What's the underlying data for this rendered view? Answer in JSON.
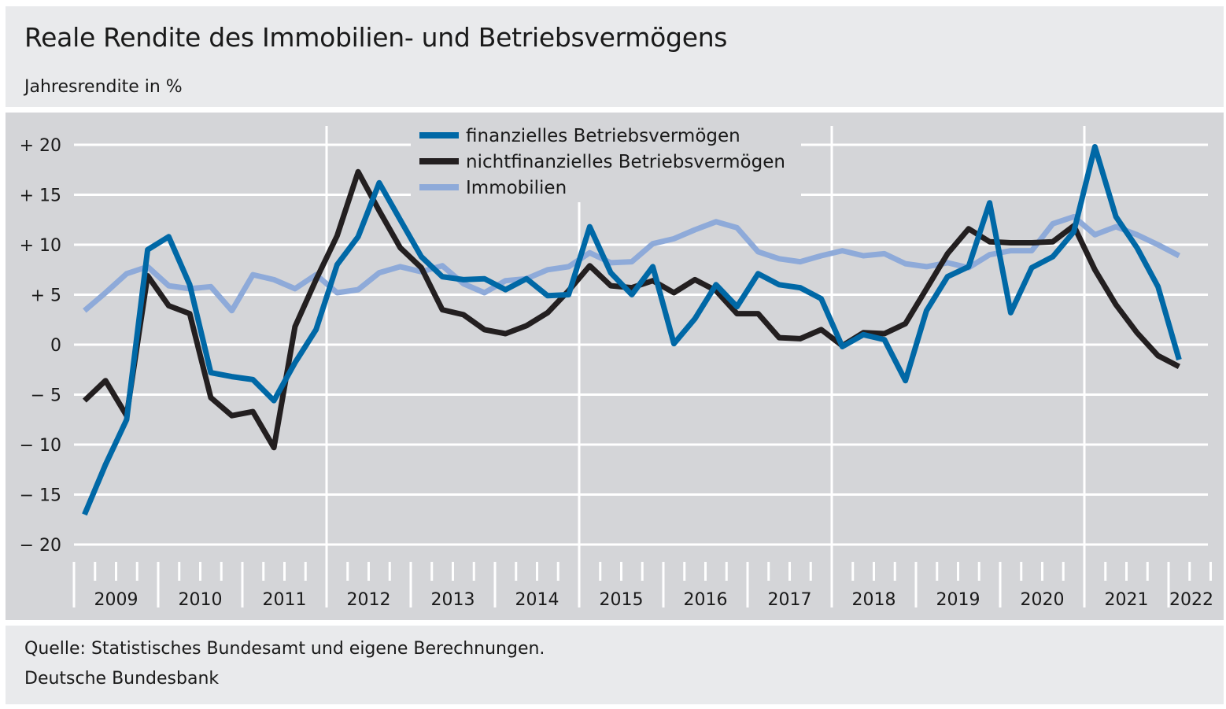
{
  "header": {
    "title": "Reale Rendite des Immobilien- und Betriebsvermögens",
    "subtitle": "Jahresrendite in %"
  },
  "footer": {
    "source": "Quelle: Statistisches Bundesamt und eigene Berechnungen.",
    "publisher": "Deutsche Bundesbank"
  },
  "colors": {
    "header_bg": "#e9eaec",
    "plot_bg": "#d4d5d8",
    "finanziell": "#0068a6",
    "nichtfinanziell": "#231f20",
    "immobilien": "#8eaad9"
  },
  "chart_data": {
    "type": "line",
    "title": "Reale Rendite des Immobilien- und Betriebsvermögens",
    "subtitle": "Jahresrendite in %",
    "xlabel": "",
    "ylabel": "",
    "ylim": [
      -20,
      20
    ],
    "y_ticks": [
      20,
      15,
      10,
      5,
      0,
      -5,
      -10,
      -15,
      -20
    ],
    "y_tick_labels": [
      "+ 20",
      "+ 15",
      "+ 10",
      "+   5",
      "0",
      "−   5",
      "− 10",
      "− 15",
      "− 20"
    ],
    "x_unit": "quarter",
    "x_start": "2009 Q1",
    "year_labels": [
      "2009",
      "2010",
      "2011",
      "2012",
      "2013",
      "2014",
      "2015",
      "2016",
      "2017",
      "2018",
      "2019",
      "2020",
      "2021",
      "2022"
    ],
    "grid": true,
    "legend_position": "top-center",
    "series": [
      {
        "name": "finanzielles Betriebsvermögen",
        "color": "#0068a6",
        "values": [
          -17.0,
          -12.0,
          -7.5,
          9.5,
          10.8,
          6.0,
          -2.8,
          -3.2,
          -3.5,
          -5.6,
          -1.8,
          1.5,
          8.0,
          10.8,
          16.2,
          12.5,
          8.8,
          6.8,
          6.5,
          6.6,
          5.5,
          6.6,
          4.9,
          5.0,
          11.8,
          7.2,
          5.0,
          7.8,
          0.1,
          2.6,
          6.0,
          3.8,
          7.1,
          6.0,
          5.7,
          4.6,
          -0.2,
          1.0,
          0.5,
          -3.6,
          3.4,
          6.8,
          7.8,
          14.2,
          3.2,
          7.7,
          8.8,
          11.3,
          19.8,
          12.8,
          9.7,
          5.8,
          -1.5
        ]
      },
      {
        "name": "nichtfinanzielles Betriebsvermögen",
        "color": "#231f20",
        "values": [
          -5.6,
          -3.6,
          -7.1,
          6.9,
          3.9,
          3.1,
          -5.3,
          -7.1,
          -6.7,
          -10.3,
          1.8,
          6.5,
          10.9,
          17.3,
          13.4,
          9.7,
          7.7,
          3.5,
          3.0,
          1.5,
          1.1,
          1.9,
          3.2,
          5.4,
          7.9,
          5.9,
          5.7,
          6.4,
          5.2,
          6.5,
          5.4,
          3.1,
          3.1,
          0.7,
          0.6,
          1.5,
          -0.1,
          1.2,
          1.1,
          2.1,
          5.6,
          9.1,
          11.6,
          10.3,
          10.2,
          10.2,
          10.3,
          11.9,
          7.5,
          4.0,
          1.2,
          -1.1,
          -2.2
        ]
      },
      {
        "name": "Immobilien",
        "color": "#8eaad9",
        "values": [
          3.4,
          5.2,
          7.1,
          7.8,
          5.9,
          5.6,
          5.8,
          3.4,
          7.0,
          6.5,
          5.6,
          7.0,
          5.2,
          5.5,
          7.2,
          7.8,
          7.3,
          7.9,
          6.1,
          5.2,
          6.4,
          6.6,
          7.5,
          7.8,
          9.2,
          8.2,
          8.3,
          10.1,
          10.6,
          11.5,
          12.3,
          11.7,
          9.3,
          8.6,
          8.3,
          8.9,
          9.4,
          8.9,
          9.1,
          8.1,
          7.8,
          8.2,
          7.7,
          9.0,
          9.4,
          9.4,
          12.1,
          12.8,
          11.0,
          11.8,
          11.0,
          10.0,
          8.9
        ]
      }
    ]
  }
}
